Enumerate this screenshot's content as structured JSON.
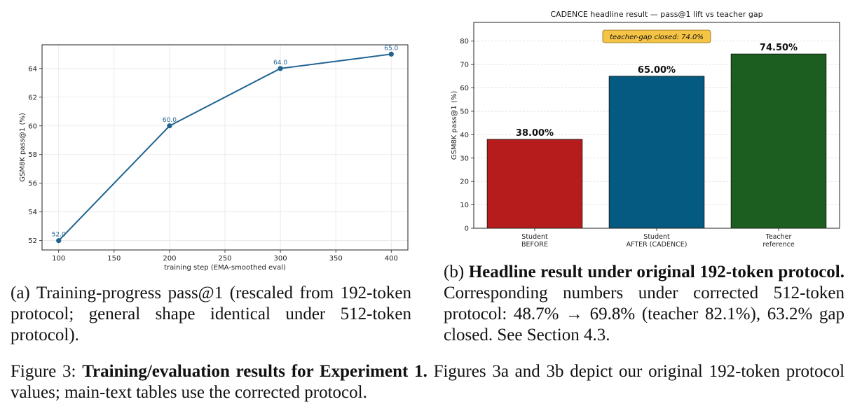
{
  "chart_data": [
    {
      "type": "line",
      "title": "",
      "xlabel": "training step (EMA-smoothed eval)",
      "ylabel": "GSM8K pass@1 (%)",
      "x": [
        100,
        200,
        300,
        400
      ],
      "y": [
        52.0,
        60.0,
        64.0,
        65.0
      ],
      "point_labels": [
        "52.0",
        "60.0",
        "64.0",
        "65.0"
      ],
      "xticks": [
        100,
        150,
        200,
        250,
        300,
        350,
        400
      ],
      "yticks": [
        52,
        54,
        56,
        58,
        60,
        62,
        64
      ],
      "xlim": [
        85,
        415
      ],
      "ylim": [
        51.35,
        65.65
      ],
      "grid": true,
      "color": "#1f6391"
    },
    {
      "type": "bar",
      "title": "CADENCE headline result — pass@1 lift vs teacher gap",
      "xlabel": "",
      "ylabel": "GSM8K pass@1 (%)",
      "categories": [
        [
          "Student",
          "BEFORE"
        ],
        [
          "Student",
          "AFTER (CADENCE)"
        ],
        [
          "Teacher",
          "reference"
        ]
      ],
      "values": [
        38.0,
        65.0,
        74.5
      ],
      "value_labels": [
        "38.00%",
        "65.00%",
        "74.50%"
      ],
      "colors": [
        "#b71c1c",
        "#045a80",
        "#1b5e20"
      ],
      "yticks": [
        0,
        10,
        20,
        30,
        40,
        50,
        60,
        70,
        80
      ],
      "ylim": [
        0,
        88
      ],
      "grid": true,
      "annotation": "teacher-gap closed: 74.0%"
    }
  ],
  "captions": {
    "a": "(a) Training-progress pass@1 (rescaled from 192-token protocol; general shape identical under 512-token protocol).",
    "b_label": "(b)",
    "b_bold": "Headline result under original 192-token protocol.",
    "b_rest": "Corresponding numbers under corrected 512-token protocol: 48.7% → 69.8% (teacher 82.1%), 63.2% gap closed. See Section 4.3.",
    "fig_label": "Figure 3:",
    "fig_bold": "Training/evaluation results for Experiment 1.",
    "fig_rest": "Figures 3a and 3b depict our original 192-token protocol values; main-text tables use the corrected protocol."
  }
}
